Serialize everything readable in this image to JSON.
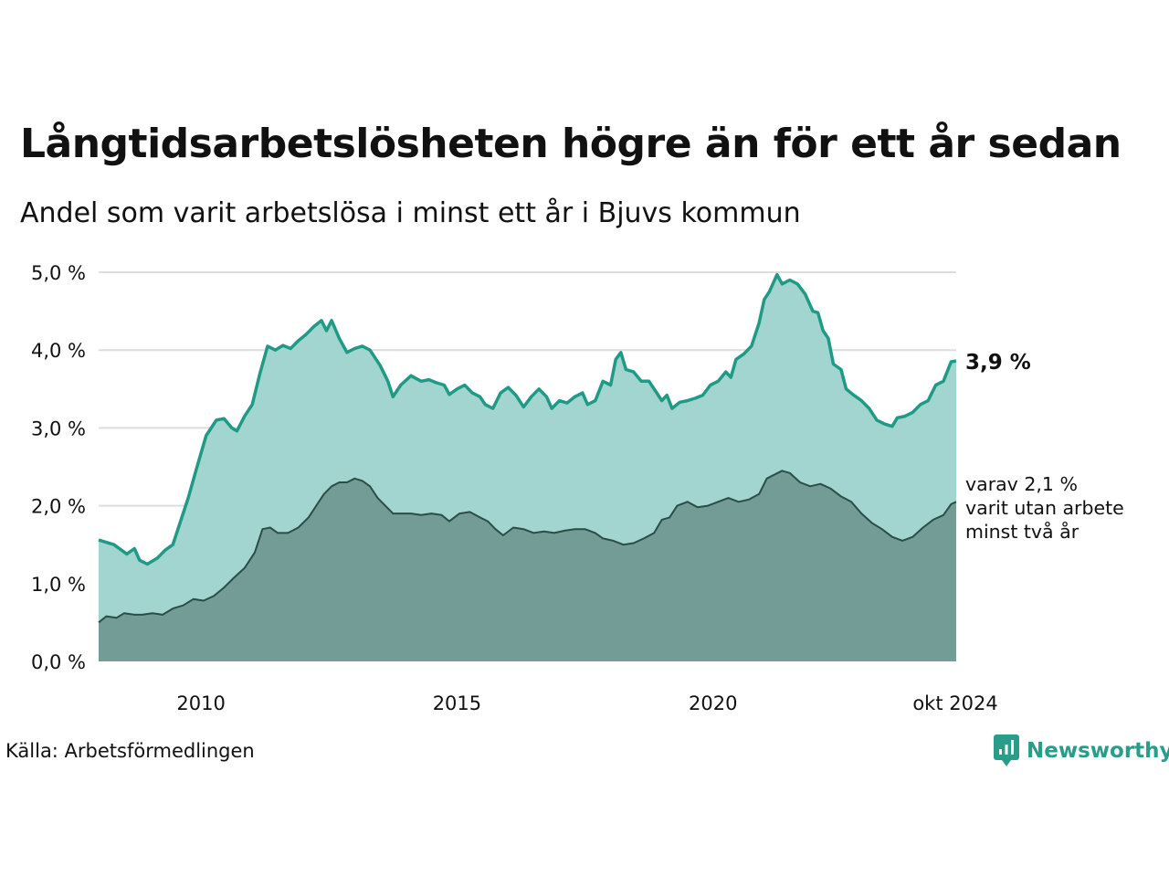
{
  "title": "Långtidsarbetslösheten högre än för ett år sedan",
  "subtitle": "Andel som varit arbetslösa i minst ett år i Bjuvs kommun",
  "source": "Källa: Arbetsförmedlingen",
  "brand": "Newsworthy",
  "colors": {
    "line_total": "#1f9a86",
    "area_total": "#a2d5cf",
    "line_sub": "#2b4d47",
    "area_sub": "#729c95",
    "grid": "#dddddd",
    "brand": "#2a9d8a"
  },
  "chart_data": {
    "type": "area",
    "y_ticks": [
      "0,0 %",
      "1,0 %",
      "2,0 %",
      "3,0 %",
      "4,0 %",
      "5,0 %"
    ],
    "x_ticks": [
      "2010",
      "2015",
      "2020",
      "okt 2024"
    ],
    "ylim": [
      0,
      5
    ],
    "xlim": [
      2008.0,
      2024.75
    ],
    "grid": true,
    "end_label_total": "3,9 %",
    "end_label_sub": [
      "varav 2,1 %",
      "varit utan arbete",
      "minst två år"
    ],
    "series": [
      {
        "key": "total",
        "points": [
          [
            2008.0,
            1.56
          ],
          [
            2008.3,
            1.5
          ],
          [
            2008.55,
            1.38
          ],
          [
            2008.7,
            1.45
          ],
          [
            2008.8,
            1.3
          ],
          [
            2008.95,
            1.25
          ],
          [
            2009.15,
            1.33
          ],
          [
            2009.3,
            1.43
          ],
          [
            2009.45,
            1.5
          ],
          [
            2009.6,
            1.8
          ],
          [
            2009.75,
            2.1
          ],
          [
            2009.9,
            2.45
          ],
          [
            2010.1,
            2.9
          ],
          [
            2010.3,
            3.1
          ],
          [
            2010.45,
            3.12
          ],
          [
            2010.6,
            3.0
          ],
          [
            2010.7,
            2.96
          ],
          [
            2010.85,
            3.15
          ],
          [
            2011.0,
            3.3
          ],
          [
            2011.15,
            3.7
          ],
          [
            2011.3,
            4.05
          ],
          [
            2011.45,
            4.0
          ],
          [
            2011.6,
            4.06
          ],
          [
            2011.75,
            4.02
          ],
          [
            2011.9,
            4.12
          ],
          [
            2012.05,
            4.2
          ],
          [
            2012.2,
            4.3
          ],
          [
            2012.35,
            4.38
          ],
          [
            2012.45,
            4.25
          ],
          [
            2012.55,
            4.38
          ],
          [
            2012.7,
            4.15
          ],
          [
            2012.85,
            3.97
          ],
          [
            2013.0,
            4.02
          ],
          [
            2013.15,
            4.05
          ],
          [
            2013.3,
            4.0
          ],
          [
            2013.5,
            3.8
          ],
          [
            2013.65,
            3.6
          ],
          [
            2013.75,
            3.4
          ],
          [
            2013.9,
            3.55
          ],
          [
            2014.1,
            3.67
          ],
          [
            2014.3,
            3.6
          ],
          [
            2014.45,
            3.62
          ],
          [
            2014.6,
            3.58
          ],
          [
            2014.75,
            3.55
          ],
          [
            2014.85,
            3.43
          ],
          [
            2015.0,
            3.5
          ],
          [
            2015.15,
            3.55
          ],
          [
            2015.3,
            3.45
          ],
          [
            2015.45,
            3.4
          ],
          [
            2015.55,
            3.3
          ],
          [
            2015.7,
            3.25
          ],
          [
            2015.85,
            3.45
          ],
          [
            2016.0,
            3.52
          ],
          [
            2016.15,
            3.42
          ],
          [
            2016.3,
            3.27
          ],
          [
            2016.45,
            3.4
          ],
          [
            2016.6,
            3.5
          ],
          [
            2016.75,
            3.4
          ],
          [
            2016.85,
            3.25
          ],
          [
            2017.0,
            3.35
          ],
          [
            2017.15,
            3.32
          ],
          [
            2017.3,
            3.4
          ],
          [
            2017.45,
            3.45
          ],
          [
            2017.55,
            3.3
          ],
          [
            2017.7,
            3.35
          ],
          [
            2017.85,
            3.6
          ],
          [
            2018.0,
            3.55
          ],
          [
            2018.1,
            3.88
          ],
          [
            2018.2,
            3.97
          ],
          [
            2018.3,
            3.75
          ],
          [
            2018.45,
            3.72
          ],
          [
            2018.6,
            3.6
          ],
          [
            2018.75,
            3.6
          ],
          [
            2018.9,
            3.45
          ],
          [
            2019.0,
            3.35
          ],
          [
            2019.1,
            3.42
          ],
          [
            2019.2,
            3.25
          ],
          [
            2019.35,
            3.33
          ],
          [
            2019.5,
            3.35
          ],
          [
            2019.65,
            3.38
          ],
          [
            2019.8,
            3.42
          ],
          [
            2019.95,
            3.55
          ],
          [
            2020.1,
            3.6
          ],
          [
            2020.25,
            3.72
          ],
          [
            2020.35,
            3.65
          ],
          [
            2020.45,
            3.88
          ],
          [
            2020.6,
            3.95
          ],
          [
            2020.75,
            4.05
          ],
          [
            2020.9,
            4.35
          ],
          [
            2021.0,
            4.65
          ],
          [
            2021.1,
            4.75
          ],
          [
            2021.25,
            4.97
          ],
          [
            2021.35,
            4.85
          ],
          [
            2021.5,
            4.9
          ],
          [
            2021.65,
            4.85
          ],
          [
            2021.8,
            4.72
          ],
          [
            2021.95,
            4.5
          ],
          [
            2022.05,
            4.48
          ],
          [
            2022.15,
            4.25
          ],
          [
            2022.25,
            4.15
          ],
          [
            2022.35,
            3.82
          ],
          [
            2022.5,
            3.75
          ],
          [
            2022.6,
            3.5
          ],
          [
            2022.75,
            3.42
          ],
          [
            2022.9,
            3.35
          ],
          [
            2023.05,
            3.25
          ],
          [
            2023.2,
            3.1
          ],
          [
            2023.35,
            3.05
          ],
          [
            2023.5,
            3.02
          ],
          [
            2023.6,
            3.13
          ],
          [
            2023.75,
            3.15
          ],
          [
            2023.9,
            3.2
          ],
          [
            2024.05,
            3.3
          ],
          [
            2024.2,
            3.35
          ],
          [
            2024.35,
            3.55
          ],
          [
            2024.5,
            3.6
          ],
          [
            2024.65,
            3.85
          ],
          [
            2024.75,
            3.86
          ]
        ]
      },
      {
        "key": "sub",
        "points": [
          [
            2008.0,
            0.5
          ],
          [
            2008.15,
            0.58
          ],
          [
            2008.35,
            0.56
          ],
          [
            2008.5,
            0.62
          ],
          [
            2008.7,
            0.6
          ],
          [
            2008.85,
            0.6
          ],
          [
            2009.05,
            0.62
          ],
          [
            2009.25,
            0.6
          ],
          [
            2009.45,
            0.68
          ],
          [
            2009.65,
            0.72
          ],
          [
            2009.85,
            0.8
          ],
          [
            2010.05,
            0.78
          ],
          [
            2010.25,
            0.84
          ],
          [
            2010.45,
            0.95
          ],
          [
            2010.65,
            1.08
          ],
          [
            2010.85,
            1.2
          ],
          [
            2011.05,
            1.4
          ],
          [
            2011.2,
            1.7
          ],
          [
            2011.35,
            1.72
          ],
          [
            2011.5,
            1.65
          ],
          [
            2011.7,
            1.65
          ],
          [
            2011.9,
            1.72
          ],
          [
            2012.1,
            1.85
          ],
          [
            2012.25,
            2.0
          ],
          [
            2012.4,
            2.15
          ],
          [
            2012.55,
            2.25
          ],
          [
            2012.7,
            2.3
          ],
          [
            2012.85,
            2.3
          ],
          [
            2013.0,
            2.35
          ],
          [
            2013.15,
            2.32
          ],
          [
            2013.3,
            2.25
          ],
          [
            2013.45,
            2.1
          ],
          [
            2013.6,
            2.0
          ],
          [
            2013.75,
            1.9
          ],
          [
            2013.9,
            1.9
          ],
          [
            2014.1,
            1.9
          ],
          [
            2014.3,
            1.88
          ],
          [
            2014.5,
            1.9
          ],
          [
            2014.7,
            1.88
          ],
          [
            2014.85,
            1.8
          ],
          [
            2015.05,
            1.9
          ],
          [
            2015.25,
            1.92
          ],
          [
            2015.45,
            1.85
          ],
          [
            2015.6,
            1.8
          ],
          [
            2015.75,
            1.7
          ],
          [
            2015.9,
            1.62
          ],
          [
            2016.1,
            1.72
          ],
          [
            2016.3,
            1.7
          ],
          [
            2016.5,
            1.65
          ],
          [
            2016.7,
            1.67
          ],
          [
            2016.9,
            1.65
          ],
          [
            2017.1,
            1.68
          ],
          [
            2017.3,
            1.7
          ],
          [
            2017.5,
            1.7
          ],
          [
            2017.7,
            1.65
          ],
          [
            2017.85,
            1.58
          ],
          [
            2018.05,
            1.55
          ],
          [
            2018.25,
            1.5
          ],
          [
            2018.45,
            1.52
          ],
          [
            2018.65,
            1.58
          ],
          [
            2018.85,
            1.65
          ],
          [
            2019.0,
            1.82
          ],
          [
            2019.15,
            1.85
          ],
          [
            2019.3,
            2.0
          ],
          [
            2019.5,
            2.05
          ],
          [
            2019.7,
            1.98
          ],
          [
            2019.9,
            2.0
          ],
          [
            2020.1,
            2.05
          ],
          [
            2020.3,
            2.1
          ],
          [
            2020.5,
            2.05
          ],
          [
            2020.7,
            2.08
          ],
          [
            2020.9,
            2.15
          ],
          [
            2021.05,
            2.35
          ],
          [
            2021.2,
            2.4
          ],
          [
            2021.35,
            2.45
          ],
          [
            2021.5,
            2.42
          ],
          [
            2021.7,
            2.3
          ],
          [
            2021.9,
            2.25
          ],
          [
            2022.1,
            2.28
          ],
          [
            2022.3,
            2.22
          ],
          [
            2022.5,
            2.12
          ],
          [
            2022.7,
            2.05
          ],
          [
            2022.9,
            1.9
          ],
          [
            2023.1,
            1.78
          ],
          [
            2023.3,
            1.7
          ],
          [
            2023.5,
            1.6
          ],
          [
            2023.7,
            1.55
          ],
          [
            2023.9,
            1.6
          ],
          [
            2024.1,
            1.72
          ],
          [
            2024.3,
            1.82
          ],
          [
            2024.5,
            1.88
          ],
          [
            2024.65,
            2.02
          ],
          [
            2024.75,
            2.05
          ]
        ]
      }
    ]
  }
}
